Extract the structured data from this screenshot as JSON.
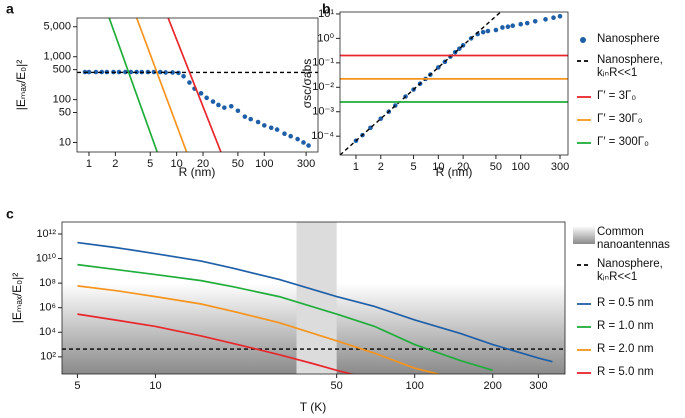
{
  "chart_data": [
    {
      "type": "line",
      "label": "a",
      "x_label": "R (nm)",
      "y_label": "|Eₘₐₓ/E₀|²",
      "xscale": "log",
      "yscale": "log",
      "xlim": [
        0.73,
        410
      ],
      "ylim": [
        6,
        8000
      ],
      "xticks": [
        1,
        2,
        5,
        10,
        20,
        50,
        100,
        300
      ],
      "yticks": [
        10,
        50,
        100,
        500,
        {
          "value": 1000,
          "label": "1,000"
        },
        {
          "value": 5000,
          "label": "5,000"
        }
      ],
      "series": [
        {
          "color": "#1f5fa8",
          "style": "markers",
          "x": [
            0.9,
            1,
            1.2,
            1.4,
            1.6,
            1.9,
            2.2,
            2.6,
            3,
            3.5,
            4,
            4.7,
            5.5,
            6.5,
            7.5,
            9,
            10.5,
            12,
            14,
            16,
            19,
            22,
            26,
            30,
            35,
            42,
            50,
            60,
            70,
            85,
            100,
            120,
            140,
            170,
            200,
            240,
            280,
            320
          ],
          "values": [
            440,
            440,
            440,
            440,
            440,
            440,
            440,
            440,
            440,
            440,
            440,
            440,
            440,
            440,
            430,
            430,
            420,
            350,
            250,
            180,
            140,
            110,
            90,
            75,
            65,
            70,
            55,
            40,
            35,
            30,
            25,
            22,
            20,
            16,
            14,
            12,
            10,
            8.5
          ]
        },
        {
          "color": "#000000",
          "style": "dashed",
          "x": [
            0.73,
            410
          ],
          "values": [
            430,
            430
          ]
        },
        {
          "color": "#e8262b",
          "style": "solid",
          "x": [
            8,
            32
          ],
          "values": [
            8000,
            6
          ]
        },
        {
          "color": "#f7941d",
          "style": "solid",
          "x": [
            3.5,
            13
          ],
          "values": [
            8000,
            6
          ]
        },
        {
          "color": "#1fad3b",
          "style": "solid",
          "x": [
            1.7,
            6
          ],
          "values": [
            8000,
            6
          ]
        }
      ]
    },
    {
      "type": "line",
      "label": "b",
      "x_label": "R (nm)",
      "y_label": "σsc/σabs",
      "xscale": "log",
      "yscale": "log",
      "xlim": [
        0.64,
        375
      ],
      "ylim": [
        1.7e-05,
        12
      ],
      "xticks": [
        1,
        2,
        5,
        10,
        20,
        50,
        100,
        300
      ],
      "yticks": [
        {
          "value": 0.0001,
          "label": "10⁻⁴"
        },
        {
          "value": 0.001,
          "label": "10⁻³"
        },
        {
          "value": 0.01,
          "label": "10⁻²"
        },
        {
          "value": 0.1,
          "label": "10⁻¹"
        },
        {
          "value": 1,
          "label": "10⁰"
        },
        {
          "value": 10,
          "label": "10¹"
        }
      ],
      "legend": "outside-right",
      "series": [
        {
          "name": "Nanosphere",
          "color": "#1f5fa8",
          "style": "markers",
          "x": [
            1,
            1.2,
            1.5,
            2,
            2.5,
            3,
            4,
            5,
            6,
            7,
            8,
            10,
            12,
            14,
            16,
            18,
            20,
            25,
            30,
            35,
            40,
            50,
            60,
            70,
            80,
            100,
            120,
            150,
            200,
            250,
            300
          ],
          "values": [
            6.5e-05,
            0.00011,
            0.00022,
            0.00052,
            0.001,
            0.0018,
            0.0042,
            0.0081,
            0.014,
            0.022,
            0.033,
            0.065,
            0.11,
            0.18,
            0.27,
            0.38,
            0.52,
            1.0,
            1.5,
            1.8,
            2,
            2.2,
            2.8,
            3,
            3.3,
            3.8,
            4.2,
            5,
            6,
            7,
            8
          ]
        },
        {
          "name": "Nanosphere, kᵢₙR<<1",
          "color": "#000000",
          "style": "dashed",
          "x": [
            0.64,
            57
          ],
          "values": [
            1.7e-05,
            12
          ]
        },
        {
          "name": "Γ′ = 3Γ₀",
          "color": "#e8262b",
          "style": "solid",
          "x": [
            0.64,
            375
          ],
          "values": [
            0.2,
            0.2
          ]
        },
        {
          "name": "Γ′ = 30Γ₀",
          "color": "#f7941d",
          "style": "solid",
          "x": [
            0.64,
            375
          ],
          "values": [
            0.022,
            0.022
          ]
        },
        {
          "name": "Γ′ = 300Γ₀",
          "color": "#1fad3b",
          "style": "solid",
          "x": [
            0.64,
            375
          ],
          "values": [
            0.0025,
            0.0025
          ]
        }
      ]
    },
    {
      "type": "line",
      "label": "c",
      "x_label": "T (K)",
      "y_label": "|Eₘₐₓ/E₀|²",
      "xscale": "log",
      "yscale": "log",
      "xlim": [
        4.36,
        380
      ],
      "ylim": [
        4,
        9500000000000.0
      ],
      "xticks": [
        5,
        10,
        50,
        100,
        200,
        300
      ],
      "yticks": [
        {
          "value": 100,
          "label": "10²"
        },
        {
          "value": 10000,
          "label": "10⁴"
        },
        {
          "value": 1000000,
          "label": "10⁶"
        },
        {
          "value": 100000000,
          "label": "10⁸"
        },
        {
          "value": 10000000000,
          "label": "10¹⁰"
        },
        {
          "value": 1000000000000,
          "label": "10¹²"
        }
      ],
      "legend": "outside-right",
      "bands": [
        {
          "range": [
            35,
            50
          ],
          "color": "#dcdcdc"
        }
      ],
      "regions": [
        {
          "name": "Common nanoantennas",
          "range": [
            4,
            100000000.0
          ],
          "color": "#8a8a8a"
        }
      ],
      "series": [
        {
          "name": "Nanosphere, kᵢₙR<<1",
          "color": "#000000",
          "style": "dashed",
          "x": [
            4.36,
            380
          ],
          "values": [
            430,
            430
          ]
        },
        {
          "name": "R = 0.5 nm",
          "color": "#1f5fa8",
          "style": "solid",
          "x": [
            5,
            7,
            10,
            15,
            20,
            30,
            50,
            70,
            100,
            150,
            200,
            300,
            340
          ],
          "values": [
            200000000000.0,
            80000000000.0,
            25000000000.0,
            6300000000.0,
            1600000000.0,
            200000000.0,
            8000000.0,
            1260000.0,
            100000,
            8000,
            1000,
            80,
            40
          ]
        },
        {
          "name": "R = 1.0 nm",
          "color": "#1fad3b",
          "style": "solid",
          "x": [
            5,
            7,
            10,
            15,
            20,
            30,
            50,
            70,
            100,
            150,
            200
          ],
          "values": [
            3200000000.0,
            1300000000.0,
            500000000.0,
            160000000.0,
            50000000.0,
            8000000.0,
            300000,
            30000,
            1000,
            50,
            8
          ]
        },
        {
          "name": "R = 2.0 nm",
          "color": "#f7941d",
          "style": "solid",
          "x": [
            5,
            7,
            10,
            15,
            20,
            30,
            50,
            70,
            100,
            130
          ],
          "values": [
            60000000.0,
            25000000.0,
            8000000.0,
            2000000.0,
            500000,
            60000,
            2000,
            200,
            12,
            3
          ]
        },
        {
          "name": "R = 5.0 nm",
          "color": "#e8262b",
          "style": "solid",
          "x": [
            5,
            7,
            10,
            15,
            20,
            30,
            40,
            50,
            60
          ],
          "values": [
            300000,
            100000,
            30000,
            5000,
            1200,
            150,
            30,
            8,
            3
          ]
        }
      ]
    }
  ]
}
